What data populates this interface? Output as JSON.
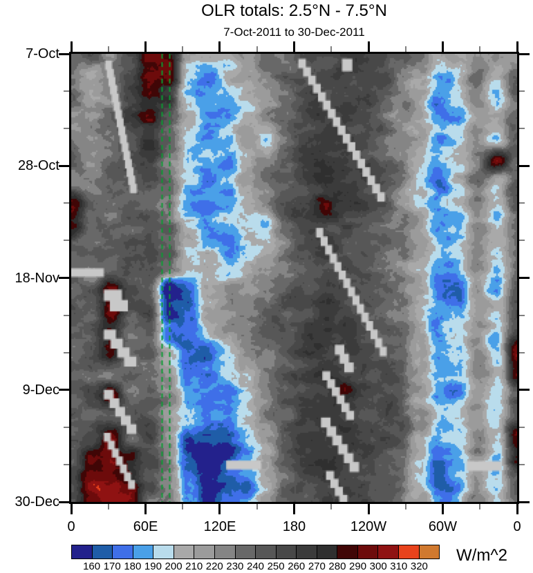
{
  "title": "OLR totals: 2.5°N - 7.5°N",
  "subtitle": "7-Oct-2011 to 30-Dec-2011",
  "colorbar": {
    "unit_label": "W/m^2",
    "tick_labels": [
      "160",
      "170",
      "180",
      "190",
      "200",
      "210",
      "220",
      "230",
      "240",
      "250",
      "260",
      "270",
      "280",
      "290",
      "300",
      "310",
      "320"
    ],
    "colors": [
      "#23218c",
      "#1f5da8",
      "#3f6fe8",
      "#4aa0e8",
      "#b9dcec",
      "#a9a9a9",
      "#9b9b9b",
      "#858585",
      "#686868",
      "#575757",
      "#484848",
      "#3b3b3b",
      "#2f2f2f",
      "#400606",
      "#6d0b0b",
      "#8f1212",
      "#e8431c",
      "#d0792f"
    ]
  },
  "axes": {
    "x": {
      "major_labels": [
        "0",
        "60E",
        "120E",
        "180",
        "120W",
        "60W",
        "0"
      ],
      "major_fracs": [
        0,
        0.1667,
        0.3333,
        0.5,
        0.6667,
        0.8333,
        1
      ],
      "minor_fracs": [
        0.0833,
        0.25,
        0.4167,
        0.5833,
        0.75,
        0.9167
      ]
    },
    "y": {
      "major_labels": [
        "7-Oct",
        "28-Oct",
        "18-Nov",
        "9-Dec",
        "30-Dec"
      ],
      "major_fracs": [
        0,
        0.25,
        0.5,
        0.75,
        1
      ],
      "minor_fracs": [
        0.0833,
        0.1667,
        0.3333,
        0.4167,
        0.5833,
        0.6667,
        0.8333,
        0.9167
      ]
    }
  },
  "chart_data": {
    "type": "heatmap",
    "title": "OLR totals: 2.5°N - 7.5°N",
    "subtitle": "7-Oct-2011 to 30-Dec-2011",
    "units": "W/m^2",
    "x_axis": {
      "kind": "longitude",
      "range_deg": [
        0,
        360
      ],
      "major_tick_deg": 60,
      "minor_tick_deg": 30,
      "tick_labels": [
        "0",
        "60E",
        "120E",
        "180",
        "120W",
        "60W",
        "0"
      ]
    },
    "y_axis": {
      "kind": "time",
      "start": "7-Oct-2011",
      "end": "30-Dec-2011",
      "major_tick_days": 21,
      "minor_tick_days": 7,
      "tick_labels": [
        "7-Oct",
        "28-Oct",
        "18-Nov",
        "9-Dec",
        "30-Dec"
      ]
    },
    "levels": [
      160,
      170,
      180,
      190,
      200,
      210,
      220,
      230,
      240,
      250,
      260,
      270,
      280,
      290,
      300,
      310,
      320
    ],
    "palette": [
      "#23218c",
      "#1f5da8",
      "#3f6fe8",
      "#4aa0e8",
      "#b9dcec",
      "#a9a9a9",
      "#9b9b9b",
      "#858585",
      "#686868",
      "#575757",
      "#484848",
      "#3b3b3b",
      "#2f2f2f",
      "#400606",
      "#6d0b0b",
      "#8f1212",
      "#e8431c",
      "#d0792f"
    ],
    "grid_lon_step_deg": 15,
    "grid_rows_days": 4,
    "values": [
      [
        235,
        240,
        228,
        258,
        295,
        288,
        215,
        205,
        195,
        222,
        238,
        232,
        246,
        252,
        258,
        262,
        255,
        240,
        228,
        198,
        210,
        232,
        228,
        225
      ],
      [
        222,
        198,
        215,
        245,
        298,
        292,
        200,
        185,
        200,
        215,
        230,
        240,
        250,
        255,
        260,
        258,
        248,
        235,
        218,
        188,
        202,
        228,
        198,
        235
      ],
      [
        238,
        215,
        228,
        252,
        290,
        275,
        195,
        178,
        190,
        205,
        225,
        238,
        252,
        258,
        262,
        255,
        245,
        230,
        208,
        178,
        195,
        225,
        186,
        240
      ],
      [
        230,
        225,
        240,
        262,
        278,
        255,
        205,
        188,
        182,
        198,
        218,
        242,
        255,
        262,
        265,
        250,
        240,
        225,
        215,
        190,
        185,
        218,
        205,
        232
      ],
      [
        225,
        218,
        235,
        255,
        268,
        240,
        195,
        180,
        192,
        212,
        195,
        235,
        258,
        265,
        262,
        248,
        238,
        228,
        210,
        182,
        192,
        222,
        190,
        235
      ],
      [
        235,
        228,
        242,
        248,
        255,
        230,
        200,
        190,
        185,
        205,
        225,
        240,
        262,
        268,
        260,
        252,
        242,
        232,
        205,
        192,
        200,
        228,
        292,
        238
      ],
      [
        228,
        232,
        238,
        240,
        250,
        238,
        192,
        178,
        188,
        215,
        230,
        245,
        258,
        262,
        265,
        258,
        245,
        228,
        198,
        170,
        205,
        232,
        200,
        240
      ],
      [
        292,
        238,
        230,
        235,
        245,
        228,
        185,
        172,
        180,
        208,
        225,
        248,
        252,
        283,
        262,
        258,
        248,
        222,
        208,
        188,
        195,
        225,
        188,
        242
      ],
      [
        288,
        242,
        235,
        242,
        252,
        235,
        195,
        182,
        192,
        200,
        188,
        238,
        255,
        262,
        258,
        252,
        240,
        230,
        215,
        182,
        188,
        222,
        195,
        238
      ],
      [
        235,
        240,
        242,
        248,
        255,
        242,
        205,
        195,
        188,
        195,
        205,
        230,
        250,
        258,
        255,
        248,
        242,
        235,
        210,
        192,
        200,
        228,
        205,
        240
      ],
      [
        228,
        235,
        245,
        252,
        248,
        238,
        210,
        200,
        195,
        205,
        220,
        238,
        248,
        252,
        250,
        245,
        238,
        228,
        205,
        185,
        195,
        225,
        195,
        238
      ],
      [
        238,
        238,
        288,
        245,
        252,
        152,
        168,
        205,
        215,
        222,
        232,
        242,
        252,
        258,
        252,
        248,
        240,
        232,
        212,
        178,
        165,
        215,
        188,
        242
      ],
      [
        242,
        240,
        284,
        255,
        248,
        158,
        172,
        210,
        218,
        228,
        238,
        248,
        255,
        260,
        255,
        250,
        242,
        235,
        208,
        188,
        192,
        222,
        198,
        245
      ],
      [
        235,
        240,
        288,
        238,
        245,
        170,
        175,
        195,
        212,
        225,
        235,
        245,
        258,
        262,
        258,
        252,
        245,
        238,
        215,
        182,
        188,
        218,
        190,
        248
      ],
      [
        240,
        245,
        290,
        240,
        240,
        205,
        162,
        158,
        195,
        218,
        230,
        242,
        255,
        265,
        260,
        255,
        248,
        240,
        210,
        178,
        185,
        222,
        185,
        295
      ],
      [
        245,
        242,
        238,
        232,
        238,
        215,
        168,
        175,
        188,
        210,
        228,
        245,
        258,
        268,
        262,
        258,
        250,
        242,
        215,
        188,
        195,
        228,
        198,
        290
      ],
      [
        238,
        250,
        292,
        238,
        245,
        222,
        195,
        182,
        178,
        195,
        218,
        240,
        255,
        262,
        282,
        260,
        252,
        245,
        218,
        182,
        178,
        215,
        192,
        242
      ],
      [
        242,
        240,
        238,
        242,
        250,
        218,
        188,
        178,
        185,
        205,
        225,
        242,
        258,
        265,
        262,
        258,
        255,
        248,
        222,
        195,
        205,
        225,
        200,
        245
      ],
      [
        248,
        248,
        290,
        240,
        252,
        225,
        172,
        155,
        162,
        188,
        215,
        238,
        255,
        262,
        265,
        262,
        258,
        250,
        215,
        185,
        192,
        228,
        195,
        288
      ],
      [
        252,
        295,
        298,
        285,
        248,
        228,
        170,
        152,
        158,
        182,
        212,
        240,
        258,
        268,
        262,
        258,
        252,
        245,
        210,
        172,
        185,
        222,
        185,
        285
      ],
      [
        255,
        300,
        296,
        288,
        245,
        232,
        172,
        155,
        162,
        178,
        208,
        235,
        255,
        262,
        258,
        255,
        248,
        240,
        205,
        158,
        178,
        218,
        195,
        242
      ],
      [
        248,
        292,
        300,
        292,
        240,
        228,
        185,
        160,
        172,
        175,
        205,
        232,
        252,
        258,
        255,
        252,
        245,
        238,
        212,
        182,
        192,
        225,
        205,
        240
      ]
    ],
    "reference_lines": {
      "style": "dashed",
      "color": "#0b9c33",
      "lon_deg": [
        73,
        79.5
      ]
    },
    "missing_data_color": "#c8c8c8",
    "missing_data_streaks": [
      [
        0.076,
        0.015,
        0.071,
        0.293
      ],
      [
        0.073,
        0.527,
        0.054,
        0.046
      ],
      [
        0.073,
        0.616,
        0.073,
        0.08
      ],
      [
        0.073,
        0.75,
        0.073,
        0.096
      ],
      [
        0.073,
        0.846,
        0.07,
        0.123
      ],
      [
        0.51,
        0.011,
        0.194,
        0.316
      ],
      [
        0.55,
        0.388,
        0.158,
        0.285
      ],
      [
        0.592,
        0.65,
        0.042,
        0.059
      ],
      [
        0.564,
        0.709,
        0.071,
        0.106
      ],
      [
        0.561,
        0.812,
        0.085,
        0.119
      ],
      [
        0.572,
        0.931,
        0.048,
        0.071
      ]
    ],
    "missing_data_bars": [
      [
        0.0,
        0.478,
        0.073,
        0.019
      ],
      [
        0.347,
        0.908,
        0.078,
        0.02
      ],
      [
        0.887,
        0.909,
        0.078,
        0.022
      ],
      [
        0.608,
        0.011,
        0.023,
        0.028
      ]
    ]
  }
}
